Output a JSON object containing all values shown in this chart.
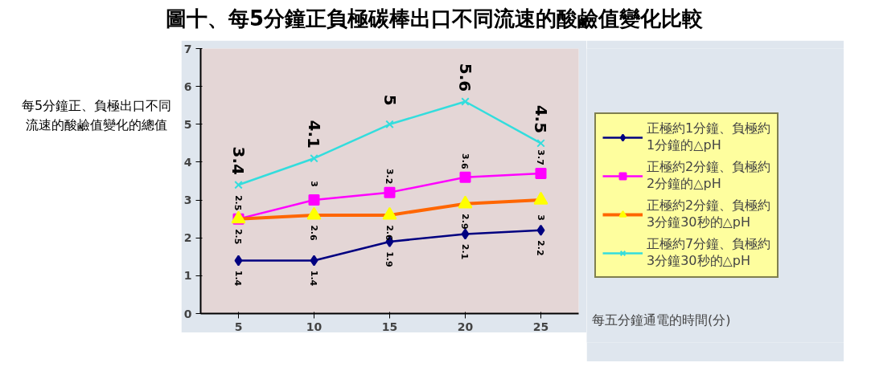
{
  "chart_data": {
    "type": "line",
    "title": "圖十、每5分鐘正負極碳棒出口不同流速的酸鹼值變化比較",
    "xlabel": "每五分鐘通電的時間(分)",
    "ylabel": "每5分鐘正、負極出口不同流速的酸鹼值變化的總值",
    "categories": [
      "5",
      "10",
      "15",
      "20",
      "25"
    ],
    "ylim": [
      0,
      7
    ],
    "yticks": [
      0,
      1,
      2,
      3,
      4,
      5,
      6,
      7
    ],
    "grid": false,
    "legend": "right",
    "data_labels": true,
    "series": [
      {
        "name": "正極約1分鐘、負極約\n1分鐘的△pH",
        "color": "#000080",
        "marker": "diamond",
        "values": [
          1.4,
          1.4,
          1.9,
          2.1,
          2.2
        ]
      },
      {
        "name": "正極約2分鐘、負極約\n2分鐘的△pH",
        "color": "#ff00ff",
        "marker": "square",
        "values": [
          2.5,
          3.0,
          3.2,
          3.6,
          3.7
        ]
      },
      {
        "name": "正極約2分鐘、負極約\n3分鐘30秒的△pH",
        "color": "#ff6600",
        "marker": "triangle",
        "values": [
          2.5,
          2.6,
          2.6,
          2.9,
          3.0
        ]
      },
      {
        "name": "正極約7分鐘、負極約\n3分鐘30秒的△pH",
        "color": "#33dddd",
        "marker": "cross",
        "values": [
          3.4,
          4.1,
          5,
          5.6,
          4.5
        ]
      }
    ]
  }
}
